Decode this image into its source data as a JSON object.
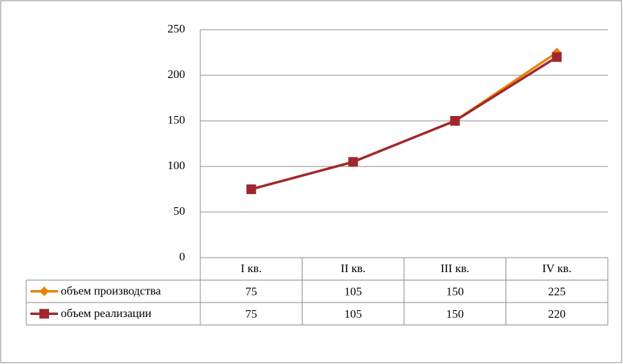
{
  "chart_data": {
    "type": "line",
    "categories": [
      "I кв.",
      "II кв.",
      "III кв.",
      "IV кв."
    ],
    "series": [
      {
        "name": "объем производства",
        "color": "#e8820c",
        "marker": "diamond",
        "values": [
          75,
          105,
          150,
          225
        ]
      },
      {
        "name": "объем реализации",
        "color": "#a0282d",
        "marker": "square",
        "values": [
          75,
          105,
          150,
          220
        ]
      }
    ],
    "ylim": [
      0,
      250
    ],
    "yticks": [
      0,
      50,
      100,
      150,
      200,
      250
    ],
    "grid": true,
    "data_table": true
  }
}
